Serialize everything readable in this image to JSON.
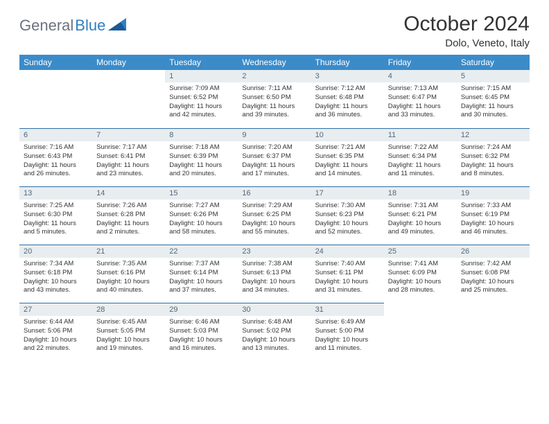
{
  "logo": {
    "part1": "General",
    "part2": "Blue"
  },
  "title": "October 2024",
  "location": "Dolo, Veneto, Italy",
  "colors": {
    "header_bg": "#3b8bc9",
    "header_text": "#ffffff",
    "daynum_bg": "#e8edf0",
    "daynum_text": "#53687a",
    "border": "#2f6ea5",
    "logo_gray": "#6b7280",
    "logo_blue": "#2f7fc2"
  },
  "day_headers": [
    "Sunday",
    "Monday",
    "Tuesday",
    "Wednesday",
    "Thursday",
    "Friday",
    "Saturday"
  ],
  "weeks": [
    [
      null,
      null,
      {
        "n": "1",
        "sunrise": "7:09 AM",
        "sunset": "6:52 PM",
        "daylight": "11 hours and 42 minutes."
      },
      {
        "n": "2",
        "sunrise": "7:11 AM",
        "sunset": "6:50 PM",
        "daylight": "11 hours and 39 minutes."
      },
      {
        "n": "3",
        "sunrise": "7:12 AM",
        "sunset": "6:48 PM",
        "daylight": "11 hours and 36 minutes."
      },
      {
        "n": "4",
        "sunrise": "7:13 AM",
        "sunset": "6:47 PM",
        "daylight": "11 hours and 33 minutes."
      },
      {
        "n": "5",
        "sunrise": "7:15 AM",
        "sunset": "6:45 PM",
        "daylight": "11 hours and 30 minutes."
      }
    ],
    [
      {
        "n": "6",
        "sunrise": "7:16 AM",
        "sunset": "6:43 PM",
        "daylight": "11 hours and 26 minutes."
      },
      {
        "n": "7",
        "sunrise": "7:17 AM",
        "sunset": "6:41 PM",
        "daylight": "11 hours and 23 minutes."
      },
      {
        "n": "8",
        "sunrise": "7:18 AM",
        "sunset": "6:39 PM",
        "daylight": "11 hours and 20 minutes."
      },
      {
        "n": "9",
        "sunrise": "7:20 AM",
        "sunset": "6:37 PM",
        "daylight": "11 hours and 17 minutes."
      },
      {
        "n": "10",
        "sunrise": "7:21 AM",
        "sunset": "6:35 PM",
        "daylight": "11 hours and 14 minutes."
      },
      {
        "n": "11",
        "sunrise": "7:22 AM",
        "sunset": "6:34 PM",
        "daylight": "11 hours and 11 minutes."
      },
      {
        "n": "12",
        "sunrise": "7:24 AM",
        "sunset": "6:32 PM",
        "daylight": "11 hours and 8 minutes."
      }
    ],
    [
      {
        "n": "13",
        "sunrise": "7:25 AM",
        "sunset": "6:30 PM",
        "daylight": "11 hours and 5 minutes."
      },
      {
        "n": "14",
        "sunrise": "7:26 AM",
        "sunset": "6:28 PM",
        "daylight": "11 hours and 2 minutes."
      },
      {
        "n": "15",
        "sunrise": "7:27 AM",
        "sunset": "6:26 PM",
        "daylight": "10 hours and 58 minutes."
      },
      {
        "n": "16",
        "sunrise": "7:29 AM",
        "sunset": "6:25 PM",
        "daylight": "10 hours and 55 minutes."
      },
      {
        "n": "17",
        "sunrise": "7:30 AM",
        "sunset": "6:23 PM",
        "daylight": "10 hours and 52 minutes."
      },
      {
        "n": "18",
        "sunrise": "7:31 AM",
        "sunset": "6:21 PM",
        "daylight": "10 hours and 49 minutes."
      },
      {
        "n": "19",
        "sunrise": "7:33 AM",
        "sunset": "6:19 PM",
        "daylight": "10 hours and 46 minutes."
      }
    ],
    [
      {
        "n": "20",
        "sunrise": "7:34 AM",
        "sunset": "6:18 PM",
        "daylight": "10 hours and 43 minutes."
      },
      {
        "n": "21",
        "sunrise": "7:35 AM",
        "sunset": "6:16 PM",
        "daylight": "10 hours and 40 minutes."
      },
      {
        "n": "22",
        "sunrise": "7:37 AM",
        "sunset": "6:14 PM",
        "daylight": "10 hours and 37 minutes."
      },
      {
        "n": "23",
        "sunrise": "7:38 AM",
        "sunset": "6:13 PM",
        "daylight": "10 hours and 34 minutes."
      },
      {
        "n": "24",
        "sunrise": "7:40 AM",
        "sunset": "6:11 PM",
        "daylight": "10 hours and 31 minutes."
      },
      {
        "n": "25",
        "sunrise": "7:41 AM",
        "sunset": "6:09 PM",
        "daylight": "10 hours and 28 minutes."
      },
      {
        "n": "26",
        "sunrise": "7:42 AM",
        "sunset": "6:08 PM",
        "daylight": "10 hours and 25 minutes."
      }
    ],
    [
      {
        "n": "27",
        "sunrise": "6:44 AM",
        "sunset": "5:06 PM",
        "daylight": "10 hours and 22 minutes."
      },
      {
        "n": "28",
        "sunrise": "6:45 AM",
        "sunset": "5:05 PM",
        "daylight": "10 hours and 19 minutes."
      },
      {
        "n": "29",
        "sunrise": "6:46 AM",
        "sunset": "5:03 PM",
        "daylight": "10 hours and 16 minutes."
      },
      {
        "n": "30",
        "sunrise": "6:48 AM",
        "sunset": "5:02 PM",
        "daylight": "10 hours and 13 minutes."
      },
      {
        "n": "31",
        "sunrise": "6:49 AM",
        "sunset": "5:00 PM",
        "daylight": "10 hours and 11 minutes."
      },
      null,
      null
    ]
  ],
  "labels": {
    "sunrise": "Sunrise:",
    "sunset": "Sunset:",
    "daylight": "Daylight:"
  }
}
